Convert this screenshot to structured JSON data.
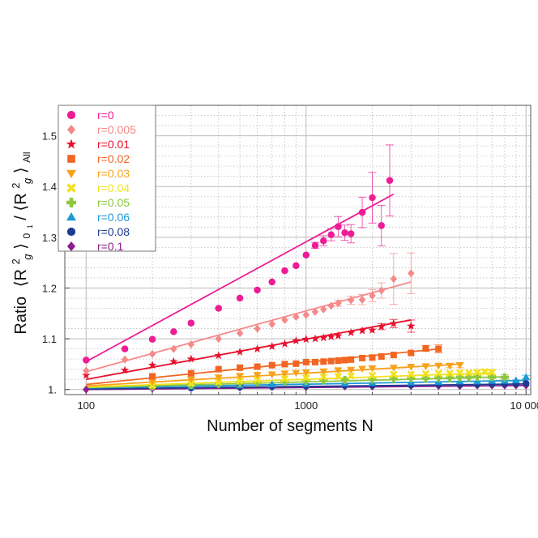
{
  "chart_data": {
    "type": "scatter",
    "xlabel": "Number of segments N",
    "ylabel_parts": {
      "ratio": "Ratio",
      "l1": "⟨R",
      "l1_sup": "2",
      "l1_sub": "g",
      "l1_close": "⟩",
      "l1_sub2": "0",
      "l1_sub3": "1",
      "slash": "/",
      "l2": "⟨R",
      "l2_sup": "2",
      "l2_sub": "g",
      "l2_close": "⟩",
      "l2_sub2": "All"
    },
    "x_scale": "log",
    "xlim": [
      80,
      10500
    ],
    "ylim": [
      0.99,
      1.56
    ],
    "grid": true,
    "legend_position": "top-left",
    "x_ticks": [
      {
        "value": 100,
        "label": "100"
      },
      {
        "value": 1000,
        "label": "1000"
      },
      {
        "value": 10000,
        "label": "10 000"
      }
    ],
    "y_ticks": [
      {
        "value": 1.0,
        "label": "1."
      },
      {
        "value": 1.1,
        "label": "1.1"
      },
      {
        "value": 1.2,
        "label": "1.2"
      },
      {
        "value": 1.3,
        "label": "1.3"
      },
      {
        "value": 1.4,
        "label": "1.4"
      },
      {
        "value": 1.5,
        "label": "1.5"
      }
    ],
    "series": [
      {
        "name": "r=0",
        "color": "#ee1c95",
        "marker": "circle",
        "fit": {
          "x": [
            100,
            2500
          ],
          "y": [
            1.055,
            1.385
          ]
        },
        "x": [
          100,
          150,
          200,
          250,
          300,
          400,
          500,
          600,
          700,
          800,
          900,
          1000,
          1100,
          1200,
          1300,
          1400,
          1500,
          1600,
          1800,
          2000,
          2200,
          2400
        ],
        "y": [
          1.058,
          1.08,
          1.099,
          1.114,
          1.131,
          1.16,
          1.18,
          1.196,
          1.212,
          1.234,
          1.244,
          1.265,
          1.284,
          1.293,
          1.305,
          1.321,
          1.309,
          1.307,
          1.349,
          1.378,
          1.323,
          1.412
        ],
        "err": [
          0,
          0,
          0,
          0,
          0,
          0,
          0,
          0,
          0,
          0,
          0,
          0,
          0.006,
          0.01,
          0.012,
          0.02,
          0.015,
          0.018,
          0.03,
          0.05,
          0.04,
          0.07
        ]
      },
      {
        "name": "r=0.005",
        "color": "#f58a8a",
        "marker": "diamond",
        "fit": {
          "x": [
            100,
            3000
          ],
          "y": [
            1.035,
            1.212
          ]
        },
        "x": [
          100,
          150,
          200,
          250,
          300,
          400,
          500,
          600,
          700,
          800,
          900,
          1000,
          1100,
          1200,
          1300,
          1400,
          1600,
          1800,
          2000,
          2200,
          2500,
          3000
        ],
        "y": [
          1.037,
          1.059,
          1.07,
          1.08,
          1.089,
          1.1,
          1.111,
          1.12,
          1.129,
          1.137,
          1.143,
          1.147,
          1.153,
          1.158,
          1.165,
          1.17,
          1.176,
          1.177,
          1.185,
          1.195,
          1.218,
          1.229
        ],
        "err": [
          0,
          0,
          0,
          0,
          0,
          0,
          0,
          0,
          0,
          0,
          0,
          0,
          0,
          0,
          0,
          0.006,
          0.008,
          0.01,
          0.012,
          0.015,
          0.05,
          0.04
        ]
      },
      {
        "name": "r=0.01",
        "color": "#e8112d",
        "marker": "star",
        "fit": {
          "x": [
            100,
            3000
          ],
          "y": [
            1.02,
            1.137
          ]
        },
        "x": [
          100,
          150,
          200,
          250,
          300,
          400,
          500,
          600,
          700,
          800,
          900,
          1000,
          1100,
          1200,
          1300,
          1400,
          1600,
          1800,
          2000,
          2200,
          2500,
          3000
        ],
        "y": [
          1.028,
          1.038,
          1.048,
          1.055,
          1.06,
          1.067,
          1.074,
          1.08,
          1.085,
          1.09,
          1.096,
          1.099,
          1.1,
          1.102,
          1.104,
          1.106,
          1.112,
          1.116,
          1.117,
          1.124,
          1.13,
          1.125
        ],
        "err": [
          0,
          0,
          0,
          0,
          0,
          0,
          0,
          0,
          0,
          0,
          0,
          0,
          0,
          0,
          0,
          0,
          0,
          0,
          0,
          0.006,
          0.008,
          0.012
        ]
      },
      {
        "name": "r=0.02",
        "color": "#f26522",
        "marker": "square",
        "fit": {
          "x": [
            100,
            4000
          ],
          "y": [
            1.01,
            1.08
          ]
        },
        "x": [
          200,
          300,
          400,
          500,
          600,
          700,
          800,
          900,
          1000,
          1100,
          1200,
          1300,
          1400,
          1500,
          1600,
          1800,
          2000,
          2200,
          2500,
          3000,
          3500,
          4000
        ],
        "y": [
          1.026,
          1.032,
          1.04,
          1.043,
          1.045,
          1.048,
          1.05,
          1.051,
          1.054,
          1.054,
          1.055,
          1.056,
          1.057,
          1.058,
          1.059,
          1.062,
          1.063,
          1.065,
          1.068,
          1.072,
          1.081,
          1.08
        ],
        "err": [
          0,
          0,
          0,
          0,
          0,
          0,
          0,
          0,
          0,
          0,
          0,
          0,
          0,
          0,
          0,
          0,
          0,
          0,
          0,
          0,
          0.006,
          0.008
        ]
      },
      {
        "name": "r=0.03",
        "color": "#f7a21b",
        "marker": "triangle-down",
        "fit": {
          "x": [
            100,
            5000
          ],
          "y": [
            1.007,
            1.05
          ]
        },
        "x": [
          200,
          300,
          400,
          500,
          600,
          700,
          800,
          900,
          1000,
          1200,
          1400,
          1600,
          1800,
          2000,
          2500,
          3000,
          3500,
          4000,
          4500,
          5000
        ],
        "y": [
          1.015,
          1.02,
          1.024,
          1.027,
          1.029,
          1.03,
          1.032,
          1.033,
          1.034,
          1.036,
          1.038,
          1.039,
          1.041,
          1.042,
          1.043,
          1.045,
          1.046,
          1.047,
          1.047,
          1.048
        ],
        "err": [
          0,
          0,
          0,
          0,
          0,
          0,
          0,
          0,
          0,
          0,
          0,
          0,
          0,
          0,
          0,
          0,
          0,
          0,
          0.004,
          0.005
        ]
      },
      {
        "name": "r=0.04",
        "color": "#f2e21e",
        "marker": "x",
        "fit": {
          "x": [
            100,
            7000
          ],
          "y": [
            1.005,
            1.033
          ]
        },
        "x": [
          200,
          300,
          400,
          500,
          600,
          800,
          1000,
          1200,
          1400,
          1600,
          2000,
          2500,
          3000,
          3500,
          4000,
          4500,
          5000,
          5500,
          6000,
          6500,
          7000
        ],
        "y": [
          1.008,
          1.012,
          1.015,
          1.017,
          1.019,
          1.021,
          1.023,
          1.025,
          1.026,
          1.027,
          1.028,
          1.03,
          1.03,
          1.031,
          1.032,
          1.032,
          1.033,
          1.033,
          1.034,
          1.035,
          1.034
        ],
        "err": [
          0,
          0,
          0,
          0,
          0,
          0,
          0,
          0,
          0,
          0,
          0,
          0,
          0,
          0,
          0,
          0,
          0,
          0,
          0.004,
          0.005,
          0.005
        ]
      },
      {
        "name": "r=0.05",
        "color": "#8dc63f",
        "marker": "plus",
        "fit": {
          "x": [
            100,
            8000
          ],
          "y": [
            1.004,
            1.025
          ]
        },
        "x": [
          200,
          300,
          400,
          500,
          600,
          800,
          1000,
          1200,
          1500,
          2000,
          2500,
          3000,
          3500,
          4000,
          4500,
          5000,
          5500,
          6000,
          7000,
          8000
        ],
        "y": [
          1.006,
          1.009,
          1.011,
          1.013,
          1.014,
          1.015,
          1.017,
          1.018,
          1.019,
          1.02,
          1.021,
          1.022,
          1.022,
          1.023,
          1.023,
          1.024,
          1.024,
          1.025,
          1.025,
          1.024
        ],
        "err": [
          0,
          0,
          0,
          0,
          0,
          0,
          0,
          0,
          0,
          0,
          0,
          0,
          0,
          0,
          0,
          0,
          0,
          0,
          0.004,
          0.005
        ]
      },
      {
        "name": "r=0.06",
        "color": "#1c9ad6",
        "marker": "triangle-up",
        "fit": {
          "x": [
            100,
            10000
          ],
          "y": [
            1.003,
            1.018
          ]
        },
        "x": [
          300,
          500,
          700,
          1000,
          1500,
          2000,
          3000,
          4000,
          5000,
          6000,
          7000,
          8000,
          9000,
          10000
        ],
        "y": [
          1.006,
          1.008,
          1.01,
          1.011,
          1.012,
          1.013,
          1.014,
          1.015,
          1.016,
          1.016,
          1.017,
          1.017,
          1.018,
          1.024
        ],
        "err": [
          0,
          0,
          0,
          0,
          0,
          0,
          0,
          0,
          0,
          0,
          0,
          0,
          0,
          0.004
        ]
      },
      {
        "name": "r=0.08",
        "color": "#1f3a93",
        "marker": "circle",
        "fit": {
          "x": [
            100,
            10000
          ],
          "y": [
            1.001,
            1.011
          ]
        },
        "x": [
          300,
          500,
          700,
          1000,
          1500,
          2000,
          3000,
          4000,
          5000,
          6000,
          7000,
          8000,
          9000,
          10000
        ],
        "y": [
          1.003,
          1.005,
          1.006,
          1.007,
          1.008,
          1.008,
          1.009,
          1.01,
          1.01,
          1.01,
          1.011,
          1.011,
          1.011,
          1.012
        ],
        "err": [
          0,
          0,
          0,
          0,
          0,
          0,
          0,
          0,
          0,
          0,
          0,
          0,
          0,
          0
        ]
      },
      {
        "name": "r=0.1",
        "color": "#8e1d8f",
        "marker": "diamond",
        "fit": {
          "x": [
            100,
            10000
          ],
          "y": [
            1.0,
            1.008
          ]
        },
        "x": [
          100,
          200,
          300,
          500,
          700,
          1000,
          1500,
          2000,
          3000,
          4000,
          5000,
          6000,
          7000,
          8000,
          9000,
          10000
        ],
        "y": [
          1.0,
          1.002,
          1.003,
          1.004,
          1.005,
          1.005,
          1.006,
          1.006,
          1.007,
          1.007,
          1.007,
          1.008,
          1.008,
          1.008,
          1.008,
          1.008
        ],
        "err": [
          0,
          0,
          0,
          0,
          0,
          0,
          0,
          0,
          0,
          0,
          0,
          0,
          0,
          0,
          0,
          0
        ]
      }
    ]
  }
}
